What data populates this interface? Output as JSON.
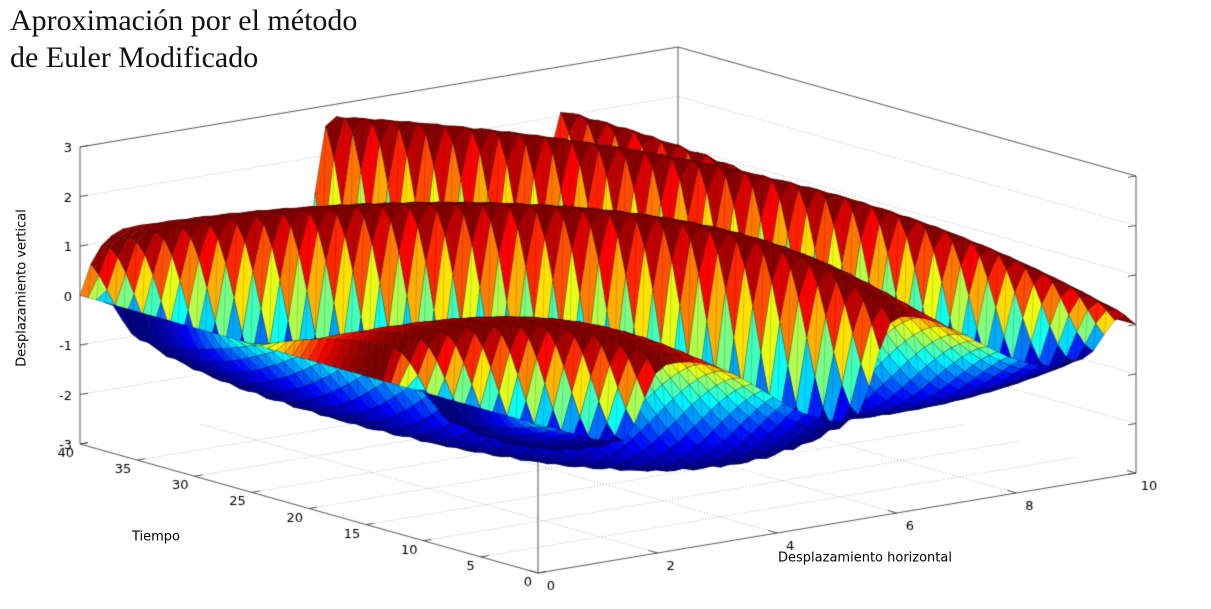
{
  "window": {
    "background": "#ffffff"
  },
  "title": {
    "line1": "Aproximación por el método",
    "line2": "de Euler Modificado"
  },
  "axis_labels": {
    "z": "Desplazamiento vertical",
    "t": "Tiempo",
    "x": "Desplazamiento horizontal"
  },
  "chart_data": {
    "type": "surface",
    "title": "Aproximación por el método de Euler Modificado",
    "xlabel": "Desplazamiento horizontal",
    "ylabel": "Tiempo",
    "zlabel": "Desplazamiento vertical",
    "x_range": [
      0,
      10
    ],
    "x_ticks": [
      0,
      2,
      4,
      6,
      8,
      10
    ],
    "y_range": [
      0,
      40
    ],
    "y_ticks": [
      0,
      5,
      10,
      15,
      20,
      25,
      30,
      35,
      40
    ],
    "z_range": [
      -3,
      3
    ],
    "z_ticks": [
      -3,
      -2,
      -1,
      0,
      1,
      2,
      3
    ],
    "colormap": "jet",
    "grid": "dotted gridlines on floor and back walls",
    "legend": "none",
    "mesh_cells": 56,
    "surface_model": {
      "description": "Traveling wave with fixed ends u(0,t)=u(10,t)=0: z(x,t)=A*sqrt(sin(pi*x/10))*g(t)*S(theta); growth g(t)=1-0.65*exp(-t/6); S = sawtooth cosine (wide descending face, narrow steep rising face); crest lines x + t/7 = const; facet colour keyed to the unmodulated wave 3*S(theta) over the full -3..3 jet range",
      "amplitude": 2.8,
      "envelope_exponent": 0.5,
      "growth_a": 0.65,
      "growth_tau": 6,
      "wavelength_x": 3.9,
      "phase_dtdx": -7,
      "phase_offset": 9.9,
      "rise_width_rad": 1.2
    },
    "landmarks": [
      {
        "feature": "fixed end (flat dark strip)",
        "x": 0,
        "t": "0-40",
        "z": 0
      },
      {
        "feature": "fixed end (pinch at corner)",
        "x": 10,
        "t": "0-40",
        "z": 0
      },
      {
        "feature": "back-edge crest peak",
        "x": 5,
        "t": 40,
        "z": 2.1
      },
      {
        "feature": "deep trough",
        "x": 6.5,
        "t": 15,
        "z": -2.7
      },
      {
        "feature": "initial-profile dip",
        "x": 3.5,
        "t": 0,
        "z": -1.1
      }
    ]
  }
}
